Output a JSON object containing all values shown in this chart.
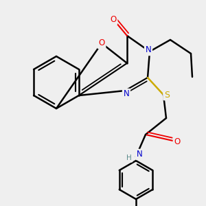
{
  "background_color": "#efefef",
  "atom_colors": {
    "C": "#000000",
    "N": "#0000cc",
    "O": "#ee0000",
    "S": "#ccaa00",
    "H": "#5a8a8a"
  },
  "bond_color": "#000000",
  "bond_width": 1.8,
  "figsize": [
    3.0,
    3.0
  ],
  "dpi": 100
}
